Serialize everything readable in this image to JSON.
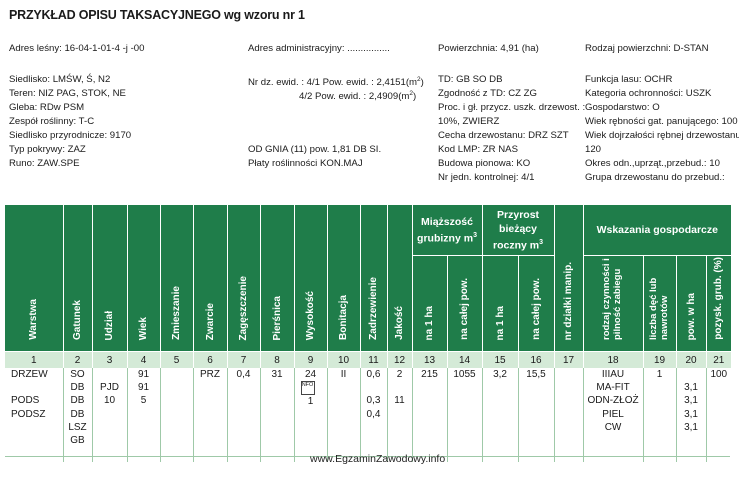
{
  "title": "PRZYKŁAD OPISU TAKSACYJNEGO wg wzoru nr 1",
  "info": {
    "adres_lesny": "Adres leśny: 16-04-1-01-4   -j   -00",
    "adres_admin": "Adres administracyjny: ................",
    "powierzchnia": "Powierzchnia: 4,91 (ha)",
    "rodzaj_pow": "Rodzaj powierzchni: D-STAN",
    "siedlisko": "Siedlisko: LMŚW, Ś, N2",
    "teren": "Teren: NIZ PAG, STOK, NE",
    "gleba": "Gleba: RDw PSM",
    "zespol": "Zespół roślinny: T-C",
    "siedlisko_przyr": "Siedlisko przyrodnicze: 9170",
    "typ_pokrywy": "Typ pokrywy: ZAZ",
    "runo": "Runo: ZAW.SPE",
    "nr_dz_ewid_1": "Nr dz. ewid. : 4/1 Pow. ewid. : 2,4151(m",
    "nr_dz_ewid_2": "4/2 Pow. ewid. : 2,4909(m",
    "sup2": "2",
    "close_paren": ")",
    "od_gnia": "OD GNIA (11)  pow. 1,81 DB SI.",
    "platy": "Płaty roślinności KON.MAJ",
    "td": "TD:  GB SO DB",
    "zgodnosc": "Zgodność z TD:  CZ ZG",
    "proc": "Proc. i gł. przycz. uszk. drzewost. :",
    "proc2": "10%, ZWIERZ",
    "cecha": "Cecha drzewostanu: DRZ SZT",
    "kod_lmp": "Kod LMP: ZR NAS",
    "budowa": "Budowa pionowa: KO",
    "nr_jedn": "Nr jedn. kontrolnej: 4/1",
    "funkcja": "Funkcja lasu: OCHR",
    "kategoria": "Kategoria ochronności: USZK",
    "gospodarstwo": "Gospodarstwo: O",
    "wiek_rebnosci": "Wiek rębności gat. panującego: 100",
    "wiek_dojrz": "Wiek dojrzałości rębnej drzewostanu:",
    "wiek_dojrz2": "120",
    "okres": "Okres odn.,uprząt.,przebud.: 10",
    "grupa": "Grupa drzewostanu do przebud.:"
  },
  "headers": {
    "warstwa": "Warstwa",
    "gatunek": "Gatunek",
    "udzial": "Udział",
    "wiek": "Wiek",
    "zmieszanie": "Zmieszanie",
    "zwarcie": "Zwarcie",
    "zageszczenie": "Zagęszczenie",
    "piersnica": "Pierśnica",
    "wysokosc": "Wysokość",
    "bonitacja": "Bonitacja",
    "zadrzewienie": "Zadrzewienie",
    "jakosc": "Jakość",
    "miazszosc": "Miąższość grubizny m",
    "przyrost": "Przyrost bieżący roczny m",
    "cube": "3",
    "na1ha_a": "na 1 ha",
    "nacalej_a": "na całej pow.",
    "na1ha_b": "na 1 ha",
    "nacalej_b": "na całej pow.",
    "nrdzialki": "nr działki manip.",
    "wskazania": "Wskazania gospodarcze",
    "rodzaj": "rodzaj czynności i pilność zabiegu",
    "liczba": "liczba dęć lub nawrotów",
    "powwha": "pow. w ha",
    "pozysk": "pozysk. grub. (%)"
  },
  "col_numbers": [
    "1",
    "2",
    "3",
    "4",
    "5",
    "6",
    "7",
    "8",
    "9",
    "10",
    "11",
    "12",
    "13",
    "14",
    "15",
    "16",
    "17",
    "18",
    "19",
    "20",
    "21"
  ],
  "rows": {
    "warstwa": [
      "DRZEW",
      "",
      "PODS",
      "PODSZ"
    ],
    "gatunek": [
      "SO",
      "DB",
      "DB",
      "DB",
      "LSZ",
      "GB"
    ],
    "udzial": [
      "",
      "PJD",
      "10"
    ],
    "wiek": [
      "91",
      "91",
      "5"
    ],
    "zwarcie": [
      "PRZ"
    ],
    "zageszczenie": [
      "0,4"
    ],
    "piersnica": [
      "31"
    ],
    "wysokosc": [
      "24",
      "",
      "1"
    ],
    "wys_icon": "NFO",
    "bonitacja": [
      "II"
    ],
    "zadrzewienie": [
      "0,6",
      "",
      "0,3",
      "0,4"
    ],
    "jakosc": [
      "2",
      "",
      "11"
    ],
    "m_na1ha": [
      "215"
    ],
    "m_calej": [
      "1055"
    ],
    "p_na1ha": [
      "3,2"
    ],
    "p_calej": [
      "15,5"
    ],
    "rodzaj": [
      "IIIAU",
      "MA-FIT",
      "ODN-ZŁOŻ",
      "PIEL",
      "CW"
    ],
    "liczba": [
      "1"
    ],
    "powwha": [
      "",
      "3,1",
      "3,1",
      "3,1",
      "3,1"
    ],
    "pozysk": [
      "100"
    ]
  },
  "watermark": "www.EgzaminZawodowy.info",
  "colors": {
    "header_green": "#1f7d4a",
    "number_row": "#d4ead7"
  }
}
